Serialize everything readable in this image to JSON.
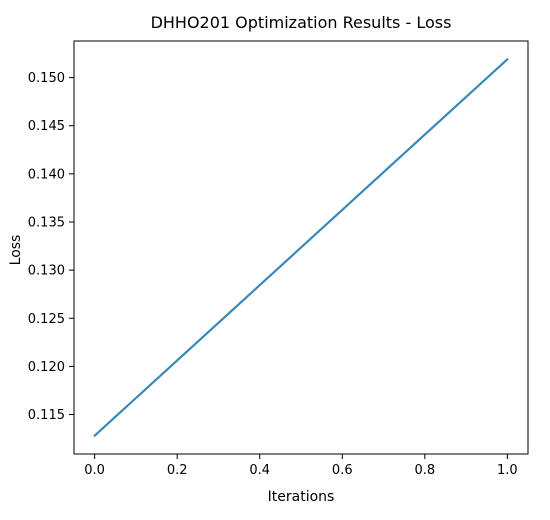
{
  "chart_data": {
    "type": "line",
    "title": "DHHO201 Optimization Results - Loss",
    "xlabel": "Iterations",
    "ylabel": "Loss",
    "xlim": [
      -0.05,
      1.05
    ],
    "ylim": [
      0.1109,
      0.1538
    ],
    "xticks": [
      0.0,
      0.2,
      0.4,
      0.6,
      0.8,
      1.0
    ],
    "xtick_labels": [
      "0.0",
      "0.2",
      "0.4",
      "0.6",
      "0.8",
      "1.0"
    ],
    "yticks": [
      0.115,
      0.12,
      0.125,
      0.13,
      0.135,
      0.14,
      0.145,
      0.15
    ],
    "ytick_labels": [
      "0.115",
      "0.120",
      "0.125",
      "0.130",
      "0.135",
      "0.140",
      "0.145",
      "0.150"
    ],
    "grid": false,
    "series": [
      {
        "color": "#3a87bb",
        "x": [
          0.0,
          1.0
        ],
        "y": [
          0.1128,
          0.1519
        ]
      }
    ]
  }
}
